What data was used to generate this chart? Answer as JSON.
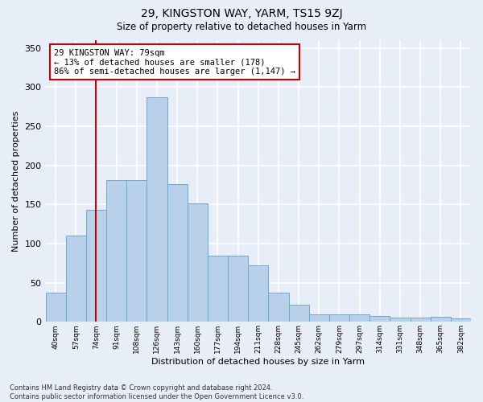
{
  "title": "29, KINGSTON WAY, YARM, TS15 9ZJ",
  "subtitle": "Size of property relative to detached houses in Yarm",
  "xlabel": "Distribution of detached houses by size in Yarm",
  "ylabel": "Number of detached properties",
  "footer_line1": "Contains HM Land Registry data © Crown copyright and database right 2024.",
  "footer_line2": "Contains public sector information licensed under the Open Government Licence v3.0.",
  "categories": [
    "40sqm",
    "57sqm",
    "74sqm",
    "91sqm",
    "108sqm",
    "126sqm",
    "143sqm",
    "160sqm",
    "177sqm",
    "194sqm",
    "211sqm",
    "228sqm",
    "245sqm",
    "262sqm",
    "279sqm",
    "297sqm",
    "314sqm",
    "331sqm",
    "348sqm",
    "365sqm",
    "382sqm"
  ],
  "values": [
    37,
    110,
    143,
    181,
    181,
    287,
    176,
    151,
    85,
    85,
    72,
    37,
    22,
    10,
    10,
    10,
    8,
    5,
    5,
    6,
    4
  ],
  "bar_color": "#b8d0ea",
  "bar_edge_color": "#6aaad4",
  "bg_color": "#e8eef8",
  "grid_color": "#ffffff",
  "vline_x": 2.0,
  "vline_color": "#cc0000",
  "annotation_text": "29 KINGSTON WAY: 79sqm\n← 13% of detached houses are smaller (178)\n86% of semi-detached houses are larger (1,147) →",
  "annotation_box_color": "#ffffff",
  "annotation_box_edge_color": "#cc0000",
  "ylim": [
    0,
    360
  ],
  "yticks": [
    0,
    50,
    100,
    150,
    200,
    250,
    300,
    350
  ]
}
